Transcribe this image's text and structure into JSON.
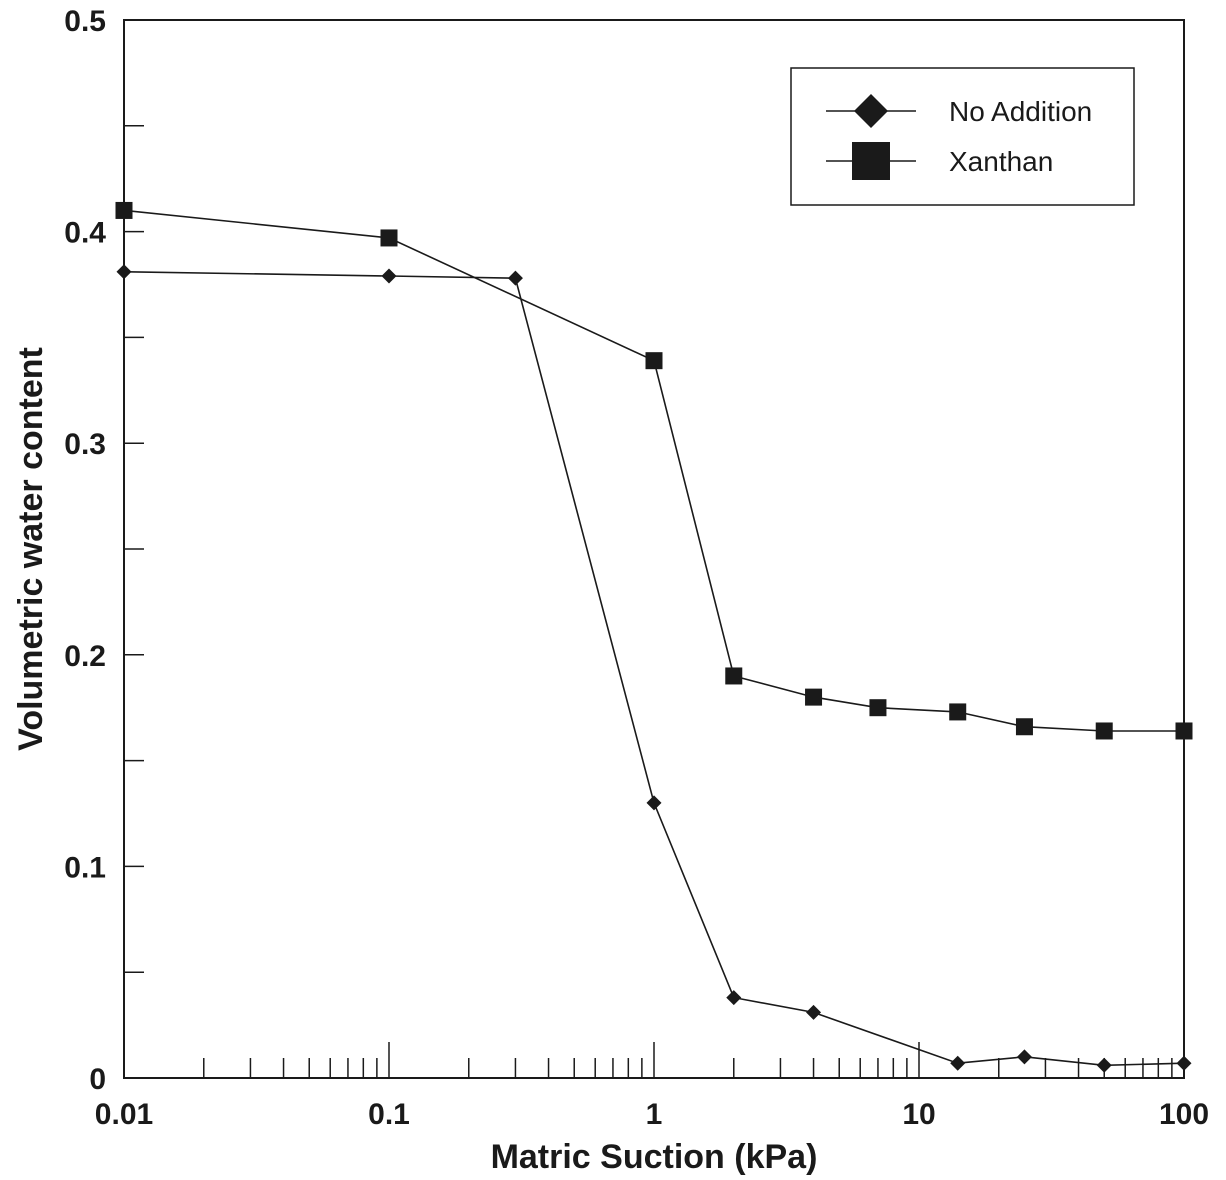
{
  "chart_data": {
    "type": "line",
    "xlabel": "Matric Suction (kPa)",
    "ylabel": "Volumetric water content",
    "xscale": "log",
    "xlim": [
      0.01,
      100
    ],
    "ylim": [
      0,
      0.5
    ],
    "x_ticks": [
      0.01,
      0.1,
      1,
      10,
      100
    ],
    "x_tick_labels": [
      "0.01",
      "0.1",
      "1",
      "10",
      "100"
    ],
    "y_ticks": [
      0,
      0.1,
      0.2,
      0.3,
      0.4,
      0.5
    ],
    "y_tick_labels": [
      "0",
      "0.1",
      "0.2",
      "0.3",
      "0.4",
      "0.5"
    ],
    "y_minor_ticks": [
      0.05,
      0.15,
      0.25,
      0.35,
      0.45
    ],
    "grid": false,
    "legend_position": "top-right",
    "series": [
      {
        "name": "No Addition",
        "marker": "diamond",
        "color": "#1a1a1a",
        "x": [
          0.01,
          0.1,
          0.3,
          1,
          2,
          4,
          14,
          25,
          50,
          100
        ],
        "y": [
          0.381,
          0.379,
          0.378,
          0.13,
          0.038,
          0.031,
          0.007,
          0.01,
          0.006,
          0.007
        ]
      },
      {
        "name": "Xanthan",
        "marker": "square",
        "color": "#1a1a1a",
        "x": [
          0.01,
          0.1,
          1,
          2,
          4,
          7,
          14,
          25,
          50,
          100
        ],
        "y": [
          0.41,
          0.397,
          0.339,
          0.19,
          0.18,
          0.175,
          0.173,
          0.166,
          0.164,
          0.164
        ]
      }
    ]
  }
}
